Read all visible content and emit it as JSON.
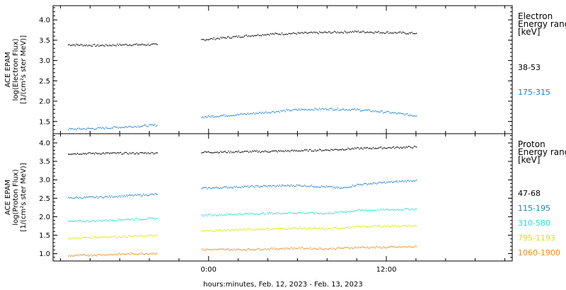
{
  "chart_data": [
    {
      "type": "scatter",
      "panel": "electron",
      "ylabel_lines": [
        "ACE EPAM",
        "log(Electron Flux)",
        "[1/(cm²s ster MeV)]"
      ],
      "ylim": [
        1.2,
        4.35
      ],
      "yticks": [
        "1.5",
        "2.0",
        "2.5",
        "3.0",
        "3.5",
        "4.0"
      ],
      "legend_title_lines": [
        "Electron",
        "Energy ranges",
        "[keV]"
      ],
      "series": [
        {
          "name": "38-53",
          "color": "#000000",
          "segments": [
            {
              "x": [
                -9.5,
                -7.5,
                -5.5,
                -3.5
              ],
              "y": [
                3.4,
                3.38,
                3.4,
                3.4
              ]
            },
            {
              "x": [
                -0.5,
                2,
                4,
                6,
                8,
                10,
                12,
                14
              ],
              "y": [
                3.52,
                3.6,
                3.66,
                3.68,
                3.7,
                3.72,
                3.7,
                3.68
              ]
            }
          ]
        },
        {
          "name": "175-315",
          "color": "#1f7fd0",
          "segments": [
            {
              "x": [
                -9.5,
                -7.5,
                -5.5,
                -3.5
              ],
              "y": [
                1.32,
                1.34,
                1.38,
                1.42
              ]
            },
            {
              "x": [
                -0.5,
                2,
                4,
                6,
                8,
                10,
                12,
                14
              ],
              "y": [
                1.62,
                1.68,
                1.74,
                1.8,
                1.82,
                1.8,
                1.74,
                1.65
              ]
            }
          ]
        }
      ]
    },
    {
      "type": "scatter",
      "panel": "proton",
      "ylabel_lines": [
        "ACE EPAM",
        "log(Proton Flux)",
        "[1/(cm²s ster MeV)]"
      ],
      "ylim": [
        0.8,
        4.25
      ],
      "yticks": [
        "1.0",
        "1.5",
        "2.0",
        "2.5",
        "3.0",
        "3.5",
        "4.0"
      ],
      "legend_title_lines": [
        "Proton",
        "Energy ranges",
        "[keV]"
      ],
      "series": [
        {
          "name": "47-68",
          "color": "#000000",
          "segments": [
            {
              "x": [
                -9.5,
                -7.5,
                -5.5,
                -3.5
              ],
              "y": [
                3.72,
                3.73,
                3.73,
                3.74
              ]
            },
            {
              "x": [
                -0.5,
                2,
                4,
                6,
                8,
                10,
                12,
                14
              ],
              "y": [
                3.76,
                3.77,
                3.78,
                3.8,
                3.82,
                3.86,
                3.88,
                3.9
              ]
            }
          ]
        },
        {
          "name": "115-195",
          "color": "#1f7fd0",
          "segments": [
            {
              "x": [
                -9.5,
                -7.5,
                -5.5,
                -3.5
              ],
              "y": [
                2.52,
                2.54,
                2.58,
                2.62
              ]
            },
            {
              "x": [
                -0.5,
                2,
                4,
                6,
                8,
                9,
                10,
                12,
                14
              ],
              "y": [
                2.78,
                2.82,
                2.84,
                2.86,
                2.82,
                2.78,
                2.88,
                2.94,
                3.0
              ]
            }
          ]
        },
        {
          "name": "310-580",
          "color": "#22e0d0",
          "segments": [
            {
              "x": [
                -9.5,
                -7.5,
                -5.5,
                -3.5
              ],
              "y": [
                1.88,
                1.9,
                1.94,
                1.96
              ]
            },
            {
              "x": [
                -0.5,
                2,
                4,
                6,
                8,
                10,
                12,
                14
              ],
              "y": [
                2.05,
                2.08,
                2.1,
                2.12,
                2.1,
                2.18,
                2.2,
                2.22
              ]
            }
          ]
        },
        {
          "name": "795-1193",
          "color": "#d8e800",
          "segments": [
            {
              "x": [
                -9.5,
                -7.5,
                -5.5,
                -3.5
              ],
              "y": [
                1.42,
                1.46,
                1.48,
                1.5
              ]
            },
            {
              "x": [
                -0.5,
                2,
                4,
                6,
                8,
                10,
                12,
                14
              ],
              "y": [
                1.62,
                1.66,
                1.68,
                1.7,
                1.68,
                1.74,
                1.76,
                1.76
              ]
            }
          ]
        },
        {
          "name": "1060-1900",
          "color": "#f08a1a",
          "segments": [
            {
              "x": [
                -9.5,
                -7.5,
                -5.5,
                -3.5
              ],
              "y": [
                0.95,
                0.98,
                1.0,
                1.02
              ]
            },
            {
              "x": [
                -0.5,
                2,
                4,
                6,
                8,
                10,
                12,
                14
              ],
              "y": [
                1.12,
                1.12,
                1.14,
                1.16,
                1.14,
                1.18,
                1.18,
                1.2
              ]
            }
          ]
        }
      ]
    }
  ],
  "x_axis": {
    "range_hours": [
      -10.5,
      20.5
    ],
    "ticks": [
      {
        "x": 0,
        "label": "0:00"
      },
      {
        "x": 12,
        "label": "12:00"
      }
    ],
    "xlabel": "hours:minutes, Feb. 12, 2023 - Feb. 13, 2023"
  }
}
